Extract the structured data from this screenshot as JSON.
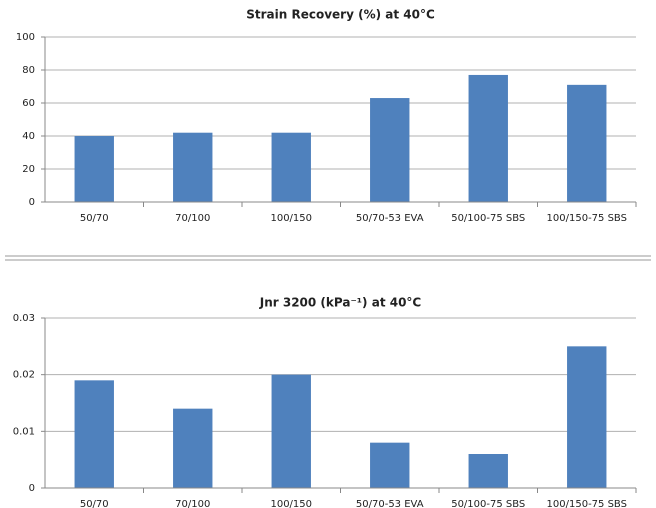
{
  "chart_data": [
    {
      "type": "bar",
      "title": "Strain Recovery (%) at 40°C",
      "categories": [
        "50/70",
        "70/100",
        "100/150",
        "50/70-53 EVA",
        "50/100-75 SBS",
        "100/150-75 SBS"
      ],
      "values": [
        40,
        42,
        42,
        63,
        77,
        71
      ],
      "color": "#4f81bd",
      "ylim": [
        0,
        100
      ],
      "yticks": [
        0,
        20,
        40,
        60,
        80,
        100
      ],
      "grid": true
    },
    {
      "type": "bar",
      "title": "Jnr 3200 (kPa⁻¹) at 40°C",
      "categories": [
        "50/70",
        "70/100",
        "100/150",
        "50/70-53 EVA",
        "50/100-75 SBS",
        "100/150-75 SBS"
      ],
      "values": [
        0.019,
        0.014,
        0.02,
        0.008,
        0.006,
        0.025
      ],
      "color": "#4f81bd",
      "ylim": [
        0,
        0.03
      ],
      "yticks": [
        0,
        0.01,
        0.02,
        0.03
      ],
      "grid": true
    }
  ]
}
